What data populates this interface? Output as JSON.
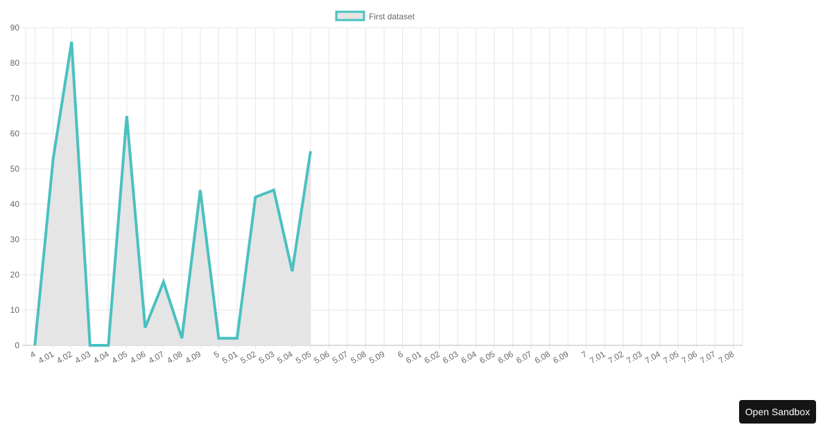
{
  "chart_data": {
    "type": "line",
    "fill": true,
    "categories": [
      "4",
      "4.01",
      "4.02",
      "4.03",
      "4.04",
      "4.05",
      "4.06",
      "4.07",
      "4.08",
      "4.09",
      "5",
      "5.01",
      "5.02",
      "5.03",
      "5.04",
      "5.05",
      "5.06",
      "5.07",
      "5.08",
      "5.09",
      "6",
      "6.01",
      "6.02",
      "6.03",
      "6.04",
      "6.05",
      "6.06",
      "6.07",
      "6.08",
      "6.09",
      "7",
      "7.01",
      "7.02",
      "7.03",
      "7.04",
      "7.05",
      "7.06",
      "7.07",
      "7.08"
    ],
    "series": [
      {
        "name": "First dataset",
        "color": "#4bc0c0",
        "fill_color": "#e5e5e5",
        "values": [
          0,
          53,
          86,
          0,
          0,
          65,
          5,
          18,
          2,
          44,
          2,
          2,
          42,
          44,
          21,
          55,
          null,
          null,
          null,
          null,
          null,
          null,
          null,
          null,
          null,
          null,
          null,
          null,
          null,
          null,
          null,
          null,
          null,
          null,
          null,
          null,
          null,
          null,
          null
        ]
      }
    ],
    "ylim": [
      0,
      90
    ],
    "yticks": [
      0,
      10,
      20,
      30,
      40,
      50,
      60,
      70,
      80,
      90
    ],
    "grid": true,
    "legend": "top"
  },
  "open_sandbox_button": "Open Sandbox"
}
